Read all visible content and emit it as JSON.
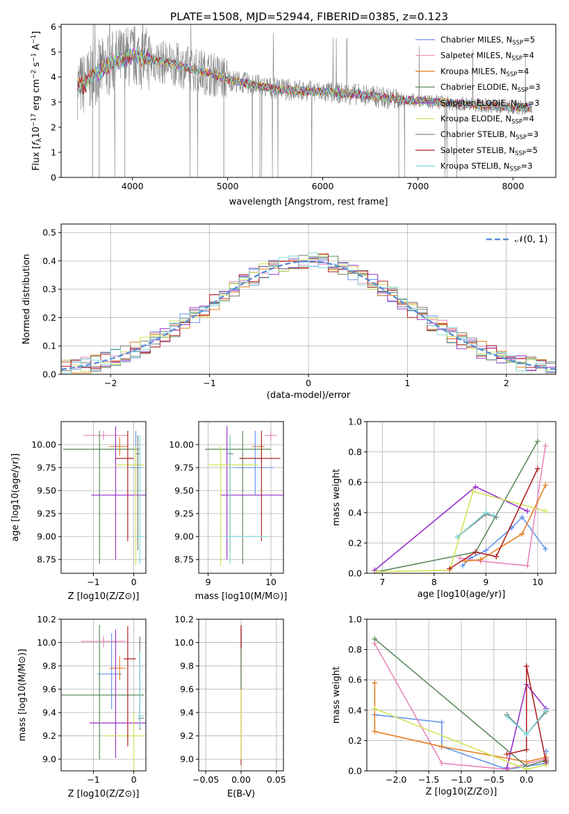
{
  "colors": {
    "spectrum": "#808080",
    "model_lines": [
      "#6495ed",
      "#e887bb",
      "#e67e22",
      "#5d8a5d",
      "#9932cc",
      "#d4e157",
      "#7a7a7a",
      "#b22222",
      "#7fd8d8"
    ],
    "gauss": "#5b8ed6"
  },
  "chart_data": [
    {
      "id": "spectrum",
      "type": "line",
      "title": "PLATE=1508, MJD=52944, FIBERID=0385, z=0.123",
      "xlabel": "wavelength [Angstrom, rest frame]",
      "ylabel": "Flux [f_λ 10^-17 erg cm^-2 s^-1 A^-1]",
      "xlim": [
        3250,
        8450
      ],
      "ylim": [
        0,
        6.1
      ],
      "xticks": [
        "4000",
        "5000",
        "6000",
        "7000",
        "8000"
      ],
      "yticks": [
        "0",
        "1",
        "2",
        "3",
        "4",
        "5",
        "6"
      ],
      "grid": false,
      "legend": "top-right",
      "series": [
        {
          "name": "Chabrier MILES, N_SSP=5"
        },
        {
          "name": "Salpeter MILES, N_SSP=4"
        },
        {
          "name": "Kroupa MILES, N_SSP=4"
        },
        {
          "name": "Chabrier ELODIE, N_SSP=3"
        },
        {
          "name": "Salpeter ELODIE, N_SSP=3"
        },
        {
          "name": "Kroupa ELODIE, N_SSP=4"
        },
        {
          "name": "Chabrier STELIB, N_SSP=3"
        },
        {
          "name": "Salpeter STELIB, N_SSP=5"
        },
        {
          "name": "Kroupa STELIB, N_SSP=3"
        }
      ],
      "continuum": {
        "x": [
          3420,
          3500,
          3600,
          3700,
          3800,
          3900,
          4000,
          4100,
          4200,
          4300,
          4400,
          4500,
          4600,
          4700,
          4800,
          4900,
          5000,
          5200,
          5400,
          5600,
          5800,
          6000,
          6200,
          6400,
          6600,
          6800,
          7000,
          7200,
          7400,
          7600,
          7800,
          8000,
          8200
        ],
        "y": [
          3.6,
          3.75,
          4.1,
          4.35,
          4.6,
          4.75,
          4.85,
          4.8,
          4.7,
          4.6,
          4.55,
          4.45,
          4.35,
          4.25,
          4.15,
          4.05,
          3.9,
          3.75,
          3.6,
          3.5,
          3.45,
          3.4,
          3.35,
          3.3,
          3.2,
          3.1,
          3.05,
          3.0,
          2.95,
          2.9,
          2.85,
          2.8,
          2.75
        ]
      }
    },
    {
      "id": "residuals",
      "type": "bar",
      "xlabel": "(data-model)/error",
      "ylabel": "Normed distribution",
      "xlim": [
        -2.5,
        2.5
      ],
      "ylim": [
        0,
        0.53
      ],
      "xticks": [
        "−2",
        "−1",
        "0",
        "1",
        "2"
      ],
      "yticks": [
        "0.0",
        "0.1",
        "0.2",
        "0.3",
        "0.4",
        "0.5"
      ],
      "grid": true,
      "legend": "top-right",
      "gauss_label": "𝒩(0, 1)",
      "bin_width": 0.1
    },
    {
      "id": "age_vs_Z",
      "type": "scatter",
      "xlabel": "Z [log10(Z/Z⊙)]",
      "ylabel": "age [log10(age/yr)]",
      "xlim": [
        -1.8,
        0.3
      ],
      "ylim": [
        8.6,
        10.25
      ],
      "xticks": [
        "−1",
        "0"
      ],
      "yticks": [
        "8.75",
        "9.00",
        "9.25",
        "9.50",
        "9.75",
        "10.00"
      ],
      "grid": true,
      "points": [
        {
          "x": 0.05,
          "y": 9.75,
          "xe": [
            0.15,
            0.15
          ],
          "ye": [
            0.3,
            0.4
          ]
        },
        {
          "x": -0.75,
          "y": 10.1,
          "xe": [
            0.5,
            0.6
          ],
          "ye": [
            0.05,
            0.05
          ]
        },
        {
          "x": -0.35,
          "y": 9.98,
          "xe": [
            0.25,
            0.2
          ],
          "ye": [
            0.1,
            0.1
          ]
        },
        {
          "x": -0.85,
          "y": 9.95,
          "xe": [
            0.9,
            1.0
          ],
          "ye": [
            1.25,
            0.2
          ]
        },
        {
          "x": -0.45,
          "y": 9.45,
          "xe": [
            0.6,
            0.85
          ],
          "ye": [
            0.7,
            0.75
          ]
        },
        {
          "x": 0.05,
          "y": 9.78,
          "xe": [
            0.5,
            0.2
          ],
          "ye": [
            1.1,
            0.2
          ]
        },
        {
          "x": 0.1,
          "y": 9.9,
          "xe": [
            0.05,
            0.05
          ],
          "ye": [
            1.05,
            0.2
          ]
        },
        {
          "x": -0.15,
          "y": 9.85,
          "xe": [
            0.3,
            0.15
          ],
          "ye": [
            0.9,
            0.3
          ]
        },
        {
          "x": 0.15,
          "y": 9.0,
          "xe": [
            0.1,
            0.1
          ],
          "ye": [
            0.3,
            1.1
          ]
        }
      ]
    },
    {
      "id": "age_vs_mass",
      "type": "scatter",
      "xlabel": "mass [log10(M/M⊙)]",
      "ylabel": "",
      "xlim": [
        8.85,
        10.2
      ],
      "ylim": [
        8.6,
        10.25
      ],
      "xticks": [
        "9",
        "10"
      ],
      "yticks": [
        "8.75",
        "9.00",
        "9.25",
        "9.50",
        "9.75",
        "10.00"
      ],
      "grid": true,
      "points": [
        {
          "x": 9.75,
          "y": 9.75,
          "xe": [
            0.35,
            0.3
          ],
          "ye": [
            0.3,
            0.4
          ]
        },
        {
          "x": 10.0,
          "y": 10.1,
          "xe": [
            0.1,
            0.1
          ],
          "ye": [
            0.05,
            0.05
          ]
        },
        {
          "x": 9.85,
          "y": 9.98,
          "xe": [
            0.15,
            0.05
          ],
          "ye": [
            0.1,
            0.1
          ]
        },
        {
          "x": 9.55,
          "y": 9.95,
          "xe": [
            0.6,
            0.45
          ],
          "ye": [
            1.25,
            0.2
          ]
        },
        {
          "x": 9.3,
          "y": 9.45,
          "xe": [
            0.1,
            0.9
          ],
          "ye": [
            0.7,
            0.75
          ]
        },
        {
          "x": 9.2,
          "y": 9.78,
          "xe": [
            0.2,
            0.6
          ],
          "ye": [
            1.1,
            0.2
          ]
        },
        {
          "x": 9.35,
          "y": 9.9,
          "xe": [
            0.05,
            0.05
          ],
          "ye": [
            1.05,
            0.2
          ]
        },
        {
          "x": 9.85,
          "y": 9.85,
          "xe": [
            0.35,
            0.3
          ],
          "ye": [
            0.9,
            0.3
          ]
        },
        {
          "x": 9.35,
          "y": 9.0,
          "xe": [
            0.1,
            0.6
          ],
          "ye": [
            0.3,
            1.1
          ]
        }
      ]
    },
    {
      "id": "mass_weight_vs_age",
      "type": "line",
      "xlabel": "age [log10(age/yr)]",
      "ylabel": "mass weight",
      "xlim": [
        6.7,
        10.35
      ],
      "ylim": [
        0,
        1.0
      ],
      "xticks": [
        "7",
        "8",
        "9",
        "10"
      ],
      "yticks": [
        "0.0",
        "0.2",
        "0.4",
        "0.6",
        "0.8",
        "1.0"
      ],
      "grid": true,
      "series": [
        {
          "x": [
            8.55,
            8.7,
            9.0,
            9.5,
            9.7,
            10.15
          ],
          "y": [
            0.05,
            0.1,
            0.15,
            0.3,
            0.37,
            0.16
          ]
        },
        {
          "x": [
            8.5,
            8.9,
            9.8,
            10.15
          ],
          "y": [
            0.1,
            0.08,
            0.05,
            0.84
          ]
        },
        {
          "x": [
            8.6,
            8.9,
            9.7,
            10.15
          ],
          "y": [
            0.08,
            0.09,
            0.26,
            0.58
          ]
        },
        {
          "x": [
            6.9,
            8.8,
            10.0
          ],
          "y": [
            0.01,
            0.14,
            0.87
          ]
        },
        {
          "x": [
            6.85,
            8.8,
            9.8
          ],
          "y": [
            0.02,
            0.57,
            0.41
          ]
        },
        {
          "x": [
            6.9,
            8.3,
            8.75,
            10.15
          ],
          "y": [
            0.01,
            0.02,
            0.54,
            0.41
          ]
        },
        {
          "x": [
            8.45,
            9.0,
            9.2
          ],
          "y": [
            0.24,
            0.39,
            0.37
          ]
        },
        {
          "x": [
            8.3,
            8.8,
            9.2,
            10.0
          ],
          "y": [
            0.03,
            0.14,
            0.11,
            0.69
          ]
        },
        {
          "x": [
            8.45,
            9.0,
            9.15
          ],
          "y": [
            0.24,
            0.4,
            0.38
          ]
        }
      ]
    },
    {
      "id": "mass_vs_Z",
      "type": "scatter",
      "xlabel": "Z [log10(Z/Z⊙)]",
      "ylabel": "mass [log10(M/M⊙)]",
      "xlim": [
        -1.8,
        0.3
      ],
      "ylim": [
        8.9,
        10.2
      ],
      "xticks": [
        "−1",
        "0"
      ],
      "yticks": [
        "9.0",
        "9.2",
        "9.4",
        "9.6",
        "9.8",
        "10.0",
        "10.2"
      ],
      "grid": true,
      "points": [
        {
          "x": -0.55,
          "y": 9.73,
          "xe": [
            0.35,
            0.25
          ],
          "ye": [
            0.3,
            0.35
          ]
        },
        {
          "x": -0.75,
          "y": 10.01,
          "xe": [
            0.55,
            0.55
          ],
          "ye": [
            0.05,
            0.05
          ]
        },
        {
          "x": -0.35,
          "y": 9.78,
          "xe": [
            0.25,
            0.15
          ],
          "ye": [
            0.1,
            0.1
          ]
        },
        {
          "x": -0.85,
          "y": 9.55,
          "xe": [
            0.95,
            1.1
          ],
          "ye": [
            0.55,
            0.6
          ]
        },
        {
          "x": -0.45,
          "y": 9.31,
          "xe": [
            0.65,
            0.75
          ],
          "ye": [
            0.3,
            0.8
          ]
        },
        {
          "x": 0.0,
          "y": 9.2,
          "xe": [
            0.75,
            0.3
          ],
          "ye": [
            0.3,
            0.2
          ]
        },
        {
          "x": 0.15,
          "y": 9.35,
          "xe": [
            0.05,
            0.1
          ],
          "ye": [
            0.1,
            0.7
          ]
        },
        {
          "x": -0.15,
          "y": 9.86,
          "xe": [
            0.1,
            0.2
          ],
          "ye": [
            0.75,
            0.28
          ]
        },
        {
          "x": 0.15,
          "y": 9.37,
          "xe": [
            0.05,
            0.1
          ],
          "ye": [
            0.1,
            0.55
          ]
        }
      ]
    },
    {
      "id": "mass_vs_ebv",
      "type": "scatter",
      "xlabel": "E(B-V)",
      "ylabel": "",
      "xlim": [
        -0.06,
        0.06
      ],
      "ylim": [
        8.9,
        10.2
      ],
      "xticks": [
        "−0.05",
        "0.00",
        "0.05"
      ],
      "yticks": [
        "9.0",
        "9.2",
        "9.4",
        "9.6",
        "9.8",
        "10.0",
        "10.2"
      ],
      "grid": true,
      "points": [
        {
          "x": 0.0,
          "y": 9.3,
          "ye": [
            0.35,
            0.85
          ]
        }
      ]
    },
    {
      "id": "mass_weight_vs_Z",
      "type": "line",
      "xlabel": "Z [log10(Z/Z⊙)]",
      "ylabel": "mass weight",
      "xlim": [
        -2.45,
        0.45
      ],
      "ylim": [
        0,
        1.0
      ],
      "xticks": [
        "−2.0",
        "−1.5",
        "−1.0",
        "−0.5",
        "0.0"
      ],
      "yticks": [
        "0.0",
        "0.2",
        "0.4",
        "0.6",
        "0.8",
        "1.0"
      ],
      "grid": true,
      "series": [
        {
          "x": [
            -2.33,
            -2.33,
            -1.3,
            -1.3,
            -0.3,
            0.3,
            0.3
          ],
          "y": [
            0.37,
            0.37,
            0.32,
            0.16,
            0.01,
            0.05,
            0.13
          ]
        },
        {
          "x": [
            -2.33,
            -1.3,
            -0.3,
            0.3
          ],
          "y": [
            0.84,
            0.05,
            0.01,
            0.08
          ]
        },
        {
          "x": [
            -2.33,
            -2.33,
            -1.3,
            0.0,
            0.3
          ],
          "y": [
            0.58,
            0.26,
            0.16,
            0.06,
            0.09
          ]
        },
        {
          "x": [
            -2.33,
            0.0,
            0.3
          ],
          "y": [
            0.87,
            0.03,
            0.07
          ]
        },
        {
          "x": [
            -0.3,
            0.0,
            0.3
          ],
          "y": [
            0.02,
            0.57,
            0.41
          ]
        },
        {
          "x": [
            -2.33,
            0.0,
            0.3
          ],
          "y": [
            0.41,
            0.01,
            0.04
          ]
        },
        {
          "x": [
            -0.3,
            0.0,
            0.3
          ],
          "y": [
            0.37,
            0.24,
            0.39
          ]
        },
        {
          "x": [
            -0.3,
            0.0,
            0.0,
            0.3
          ],
          "y": [
            0.11,
            0.14,
            0.69,
            0.06
          ]
        },
        {
          "x": [
            -0.3,
            0.0,
            0.3
          ],
          "y": [
            0.36,
            0.24,
            0.4
          ]
        }
      ]
    }
  ]
}
